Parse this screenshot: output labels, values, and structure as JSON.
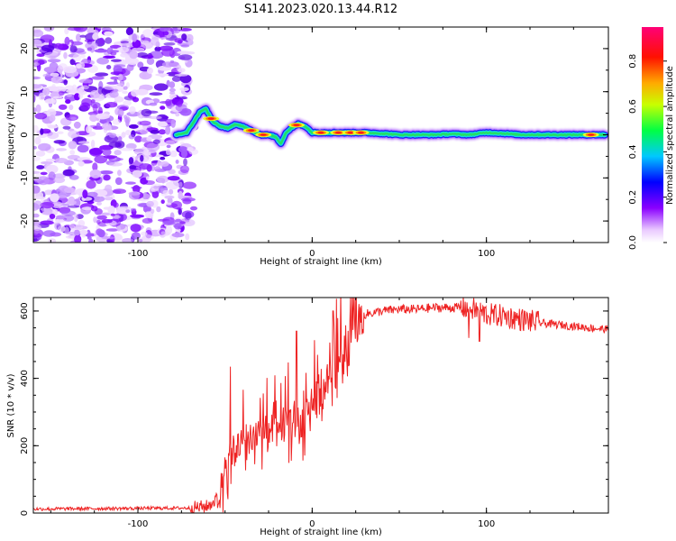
{
  "title": "S141.2023.020.13.44.R12",
  "chart_data": [
    {
      "type": "heatmap",
      "xlabel": "Height of straight line (km)",
      "ylabel": "Frequency (Hz)",
      "xlim": [
        -160,
        170
      ],
      "ylim": [
        -25,
        25
      ],
      "x_ticks": [
        -100,
        0,
        100
      ],
      "y_ticks": [
        -20,
        -10,
        0,
        10,
        20
      ],
      "noise_region": {
        "x": [
          -160,
          -70
        ],
        "y": [
          -25,
          25
        ]
      },
      "frequency_track": {
        "x": [
          -78,
          -72,
          -68,
          -64,
          -61,
          -57,
          -53,
          -48,
          -44,
          -40,
          -35,
          -30,
          -25,
          -21,
          -18,
          -15,
          -12,
          -8,
          -4,
          0,
          10,
          20,
          30,
          40,
          50,
          60,
          70,
          80,
          90,
          100,
          110,
          120,
          130,
          140,
          150,
          160,
          168
        ],
        "y": [
          0,
          0.5,
          3,
          5.5,
          6,
          3,
          2,
          1.5,
          2.5,
          2,
          1,
          0,
          0,
          -0.5,
          -2,
          0.5,
          1.5,
          2.5,
          2,
          0.5,
          0.5,
          0.5,
          0.5,
          0.3,
          0,
          0,
          0,
          0.2,
          0,
          0.5,
          0.3,
          0,
          0,
          0,
          0,
          0,
          0
        ]
      },
      "hot_spots_x": [
        -58,
        -35,
        -28,
        -9,
        5,
        15,
        22,
        28,
        160
      ],
      "colorbar": {
        "label": "Normalized spectral amplitude",
        "ticks": [
          "0.0",
          "0.2",
          "0.4",
          "0.6",
          "0.8"
        ],
        "range": [
          0,
          0.95
        ]
      }
    },
    {
      "type": "line",
      "xlabel": "Height of straight line (km)",
      "ylabel": "SNR (10 * v/v)",
      "xlim": [
        -160,
        170
      ],
      "ylim": [
        0,
        640
      ],
      "x_ticks": [
        -100,
        0,
        100
      ],
      "y_ticks": [
        0,
        200,
        400,
        600
      ],
      "line_color": "#ee2222",
      "series_profile": {
        "x": [
          -160,
          -70,
          -60,
          -55,
          -50,
          -45,
          -40,
          -35,
          -30,
          -25,
          -20,
          -15,
          -10,
          -5,
          0,
          5,
          10,
          15,
          20,
          25,
          30,
          40,
          50,
          60,
          70,
          80,
          90,
          100,
          110,
          120,
          130,
          140,
          150,
          160,
          170
        ],
        "y": [
          12,
          15,
          20,
          40,
          120,
          180,
          220,
          230,
          240,
          230,
          240,
          270,
          270,
          250,
          330,
          360,
          400,
          460,
          510,
          560,
          590,
          600,
          605,
          605,
          610,
          610,
          610,
          590,
          585,
          575,
          565,
          560,
          555,
          550,
          545
        ]
      },
      "spikes": [
        [
          -47,
          435
        ],
        [
          -33,
          362
        ],
        [
          -28,
          355
        ],
        [
          -22,
          330
        ],
        [
          -12,
          555
        ],
        [
          -9,
          540
        ],
        [
          3,
          470
        ],
        [
          12,
          600
        ],
        [
          18,
          640
        ],
        [
          22,
          640
        ],
        [
          90,
          520
        ],
        [
          96,
          510
        ]
      ]
    }
  ]
}
